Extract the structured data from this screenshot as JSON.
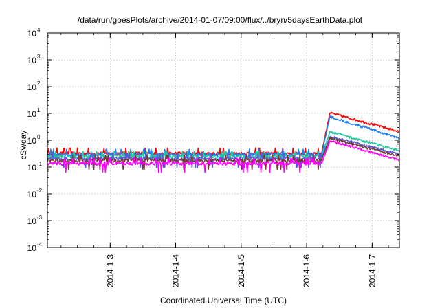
{
  "chart_data": {
    "type": "line",
    "title": "/data/run/goesPlots/archive/2014-01-07/09:00/flux/../bryn/5daysEarthData.plot",
    "xlabel": "Coordinated Universal Time (UTC)",
    "ylabel": "cSv/day",
    "yscale": "log",
    "ylim": [
      0.0001,
      10000
    ],
    "y_ticks": [
      {
        "base": "10",
        "exp": "-4",
        "value": 0.0001
      },
      {
        "base": "10",
        "exp": "-3",
        "value": 0.001
      },
      {
        "base": "10",
        "exp": "-2",
        "value": 0.01
      },
      {
        "base": "10",
        "exp": "-1",
        "value": 0.1
      },
      {
        "base": "10",
        "exp": "0",
        "value": 1
      },
      {
        "base": "10",
        "exp": "1",
        "value": 10
      },
      {
        "base": "10",
        "exp": "2",
        "value": 100
      },
      {
        "base": "10",
        "exp": "3",
        "value": 1000
      },
      {
        "base": "10",
        "exp": "4",
        "value": 10000
      }
    ],
    "xlim": [
      "2014-01-02T01:00",
      "2014-01-07T10:00"
    ],
    "x_ticks": [
      {
        "label": "2014-1-3",
        "value": "2014-01-03T00:00"
      },
      {
        "label": "2014-1-4",
        "value": "2014-01-04T00:00"
      },
      {
        "label": "2014-1-5",
        "value": "2014-01-05T00:00"
      },
      {
        "label": "2014-1-6",
        "value": "2014-01-06T00:00"
      },
      {
        "label": "2014-1-7",
        "value": "2014-01-07T00:00"
      }
    ],
    "grid": true,
    "legend": "none",
    "series": [
      {
        "color": "#ff0000",
        "baseline": 0.33,
        "peak_time": "2014-01-06T08:30",
        "peak": 10.5,
        "end": 2.1
      },
      {
        "color": "#1e7ff0",
        "baseline": 0.3,
        "peak_time": "2014-01-06T08:30",
        "peak": 7.5,
        "end": 1.2
      },
      {
        "color": "#20c8a0",
        "baseline": 0.25,
        "peak_time": "2014-01-06T08:30",
        "peak": 2.1,
        "end": 0.4
      },
      {
        "color": "#5a5ad8",
        "baseline": 0.21,
        "peak_time": "2014-01-06T08:30",
        "peak": 1.4,
        "end": 0.3
      },
      {
        "color": "#7a3a3a",
        "baseline": 0.18,
        "peak_time": "2014-01-06T08:30",
        "peak": 1.2,
        "end": 0.25
      },
      {
        "color": "#ff00ff",
        "baseline": 0.14,
        "peak_time": "2014-01-06T08:30",
        "peak": 0.95,
        "end": 0.18
      }
    ]
  }
}
